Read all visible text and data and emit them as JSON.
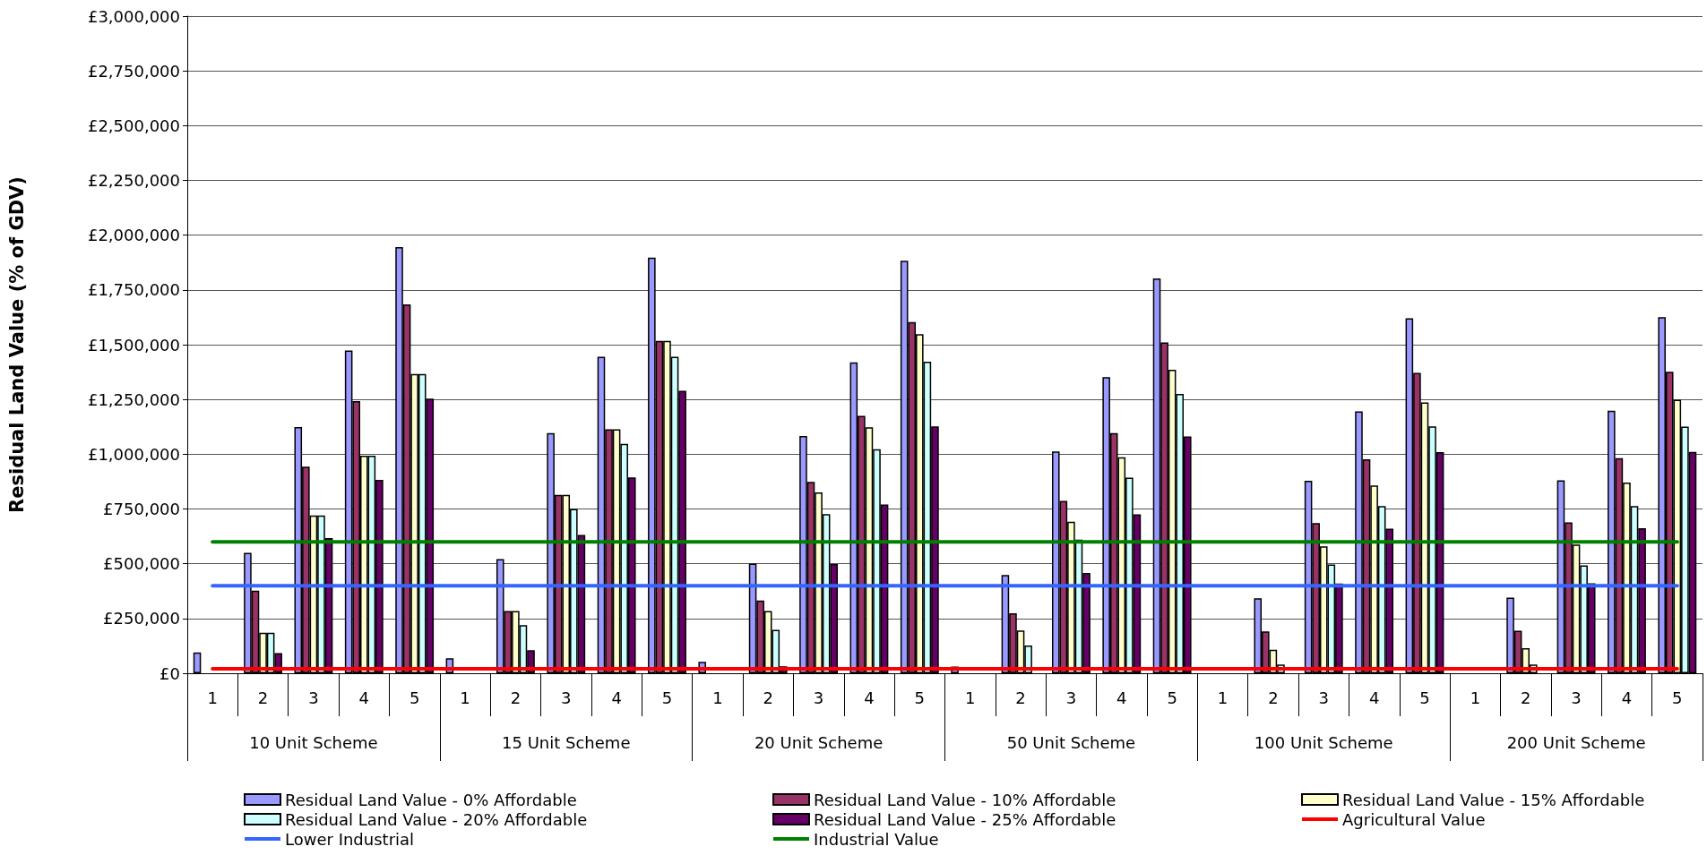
{
  "chart_data": {
    "type": "bar",
    "ylabel": "Residual Land Value (% of GDV)",
    "categories": [
      "1",
      "2",
      "3",
      "4",
      "5",
      "1",
      "2",
      "3",
      "4",
      "5",
      "1",
      "2",
      "3",
      "4",
      "5",
      "1",
      "2",
      "3",
      "4",
      "5",
      "1",
      "2",
      "3",
      "4",
      "5",
      "1",
      "2",
      "3",
      "4",
      "5"
    ],
    "annotations": [
      "10 Unit Scheme",
      "15 Unit Scheme",
      "20 Unit Scheme",
      "50 Unit Scheme",
      "100 Unit Scheme",
      "200 Unit Scheme"
    ],
    "ylim": [
      0,
      3000000
    ],
    "yticks": [
      {
        "value": 0,
        "label": "£0"
      },
      {
        "value": 250000,
        "label": "£250,000"
      },
      {
        "value": 500000,
        "label": "£500,000"
      },
      {
        "value": 750000,
        "label": "£750,000"
      },
      {
        "value": 1000000,
        "label": "£1,000,000"
      },
      {
        "value": 1250000,
        "label": "£1,250,000"
      },
      {
        "value": 1500000,
        "label": "£1,500,000"
      },
      {
        "value": 1750000,
        "label": "£1,750,000"
      },
      {
        "value": 2000000,
        "label": "£2,000,000"
      },
      {
        "value": 2250000,
        "label": "£2,250,000"
      },
      {
        "value": 2500000,
        "label": "£2,500,000"
      },
      {
        "value": 2750000,
        "label": "£2,750,000"
      },
      {
        "value": 3000000,
        "label": "£3,000,000"
      }
    ],
    "grid": "y",
    "legend": "bottom",
    "series": [
      {
        "name": "Residual Land Value - 0% Affordable",
        "color": "#9999ff",
        "values": [
          95000,
          550000,
          1124000,
          1473000,
          1945000,
          68000,
          521000,
          1096000,
          1445000,
          1897000,
          52000,
          501000,
          1083000,
          1419000,
          1883000,
          31000,
          449000,
          1013000,
          1352000,
          1802000,
          null,
          342000,
          879000,
          1195000,
          1621000,
          null,
          345000,
          881000,
          1199000,
          1626000
        ]
      },
      {
        "name": "Residual Land Value - 10% Affordable",
        "color": "#993366",
        "values": [
          null,
          377000,
          943000,
          1243000,
          1684000,
          null,
          284000,
          814000,
          1114000,
          1517000,
          null,
          332000,
          874000,
          1175000,
          1603000,
          null,
          274000,
          787000,
          1096000,
          1510000,
          null,
          191000,
          686000,
          977000,
          1371000,
          null,
          194000,
          689000,
          982000,
          1376000
        ]
      },
      {
        "name": "Residual Land Value - 15% Affordable",
        "color": "#ffffcc",
        "values": [
          null,
          185000,
          720000,
          993000,
          1366000,
          null,
          284000,
          814000,
          1114000,
          1517000,
          null,
          284000,
          826000,
          1123000,
          1548000,
          null,
          195000,
          692000,
          986000,
          1386000,
          null,
          107000,
          579000,
          857000,
          1236000,
          null,
          114000,
          588000,
          871000,
          1249000
        ]
      },
      {
        "name": "Residual Land Value - 20% Affordable",
        "color": "#ccffff",
        "values": [
          null,
          185000,
          720000,
          993000,
          1366000,
          null,
          220000,
          750000,
          1047000,
          1445000,
          null,
          198000,
          726000,
          1023000,
          1422000,
          null,
          127000,
          610000,
          893000,
          1275000,
          null,
          40000,
          497000,
          763000,
          1127000,
          null,
          40000,
          492000,
          763000,
          1126000
        ]
      },
      {
        "name": "Residual Land Value - 25% Affordable",
        "color": "#660066",
        "values": [
          null,
          92000,
          617000,
          883000,
          1254000,
          null,
          105000,
          631000,
          894000,
          1290000,
          null,
          32000,
          499000,
          770000,
          1127000,
          null,
          null,
          458000,
          725000,
          1081000,
          null,
          null,
          410000,
          660000,
          1010000,
          null,
          null,
          411000,
          662000,
          1011000
        ]
      },
      {
        "name": "Agricultural Value",
        "type": "line",
        "color": "#ff0000",
        "values": [
          20000,
          20000,
          20000,
          20000,
          20000,
          20000,
          20000,
          20000,
          20000,
          20000,
          20000,
          20000,
          20000,
          20000,
          20000,
          20000,
          20000,
          20000,
          20000,
          20000,
          20000,
          20000,
          20000,
          20000,
          20000,
          20000,
          20000,
          20000,
          20000,
          20000
        ]
      },
      {
        "name": "Lower Industrial",
        "type": "line",
        "color": "#3366ff",
        "values": [
          400000,
          400000,
          400000,
          400000,
          400000,
          400000,
          400000,
          400000,
          400000,
          400000,
          400000,
          400000,
          400000,
          400000,
          400000,
          400000,
          400000,
          400000,
          400000,
          400000,
          400000,
          400000,
          400000,
          400000,
          400000,
          400000,
          400000,
          400000,
          400000,
          400000
        ]
      },
      {
        "name": "Industrial Value",
        "type": "line",
        "color": "#008000",
        "values": [
          600000,
          600000,
          600000,
          600000,
          600000,
          600000,
          600000,
          600000,
          600000,
          600000,
          600000,
          600000,
          600000,
          600000,
          600000,
          600000,
          600000,
          600000,
          600000,
          600000,
          600000,
          600000,
          600000,
          600000,
          600000,
          600000,
          600000,
          600000,
          600000,
          600000
        ]
      }
    ],
    "marker": "none"
  }
}
